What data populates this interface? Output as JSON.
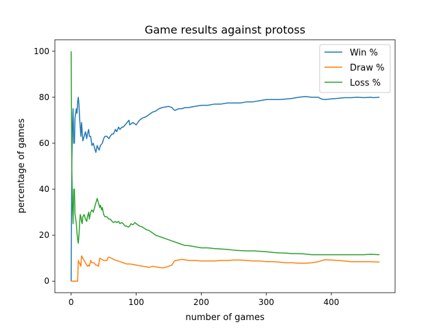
{
  "chart_data": {
    "type": "line",
    "title": "Game results against protoss",
    "xlabel": "number of games",
    "ylabel": "percentage of games",
    "xlim": [
      -25,
      498
    ],
    "ylim": [
      -5,
      105
    ],
    "xticks": [
      0,
      100,
      200,
      300,
      400
    ],
    "yticks": [
      0,
      20,
      40,
      60,
      80,
      100
    ],
    "grid": false,
    "legend_position": "top-right",
    "series": [
      {
        "name": "Win %",
        "color": "#1f77b4",
        "points": [
          [
            0,
            0
          ],
          [
            1,
            50
          ],
          [
            2,
            67
          ],
          [
            3,
            75
          ],
          [
            4,
            60
          ],
          [
            5,
            60
          ],
          [
            6,
            71
          ],
          [
            8,
            75
          ],
          [
            9,
            73
          ],
          [
            10,
            78
          ],
          [
            11,
            80
          ],
          [
            12,
            77
          ],
          [
            13,
            71
          ],
          [
            14,
            67
          ],
          [
            15,
            63
          ],
          [
            16,
            69
          ],
          [
            17,
            65
          ],
          [
            18,
            61
          ],
          [
            20,
            63
          ],
          [
            22,
            65
          ],
          [
            24,
            62
          ],
          [
            25,
            64
          ],
          [
            27,
            66
          ],
          [
            28,
            63
          ],
          [
            30,
            63
          ],
          [
            32,
            59
          ],
          [
            34,
            60
          ],
          [
            36,
            58
          ],
          [
            38,
            56
          ],
          [
            40,
            59
          ],
          [
            43,
            57
          ],
          [
            45,
            59
          ],
          [
            48,
            60
          ],
          [
            50,
            62
          ],
          [
            52,
            63
          ],
          [
            55,
            63
          ],
          [
            58,
            62
          ],
          [
            60,
            63
          ],
          [
            63,
            64
          ],
          [
            65,
            64
          ],
          [
            68,
            66
          ],
          [
            70,
            65
          ],
          [
            73,
            67
          ],
          [
            75,
            66
          ],
          [
            78,
            67
          ],
          [
            80,
            67
          ],
          [
            83,
            68
          ],
          [
            86,
            69
          ],
          [
            89,
            70
          ],
          [
            90,
            68
          ],
          [
            95,
            69
          ],
          [
            100,
            68
          ],
          [
            105,
            70
          ],
          [
            110,
            71
          ],
          [
            115,
            71.5
          ],
          [
            120,
            72.5
          ],
          [
            125,
            73.5
          ],
          [
            130,
            74
          ],
          [
            135,
            75
          ],
          [
            140,
            75.5
          ],
          [
            145,
            75.8
          ],
          [
            150,
            76
          ],
          [
            155,
            75.5
          ],
          [
            158,
            74.5
          ],
          [
            160,
            74.3
          ],
          [
            165,
            75
          ],
          [
            170,
            75
          ],
          [
            175,
            75.5
          ],
          [
            180,
            75.5
          ],
          [
            190,
            76
          ],
          [
            200,
            76.5
          ],
          [
            210,
            76.5
          ],
          [
            220,
            77
          ],
          [
            230,
            77
          ],
          [
            240,
            77.5
          ],
          [
            250,
            77.5
          ],
          [
            260,
            77.5
          ],
          [
            270,
            78
          ],
          [
            280,
            78
          ],
          [
            290,
            78.5
          ],
          [
            300,
            79
          ],
          [
            310,
            79
          ],
          [
            320,
            79
          ],
          [
            330,
            79.2
          ],
          [
            340,
            79.5
          ],
          [
            350,
            80
          ],
          [
            360,
            80.3
          ],
          [
            370,
            80
          ],
          [
            380,
            80
          ],
          [
            385,
            79.2
          ],
          [
            390,
            79
          ],
          [
            400,
            79.3
          ],
          [
            410,
            79.5
          ],
          [
            420,
            79.8
          ],
          [
            430,
            79.8
          ],
          [
            440,
            80
          ],
          [
            450,
            79.8
          ],
          [
            460,
            80
          ],
          [
            465,
            79.8
          ],
          [
            474,
            80
          ]
        ]
      },
      {
        "name": "Draw %",
        "color": "#ff7f0e",
        "points": [
          [
            0,
            0
          ],
          [
            5,
            0
          ],
          [
            6,
            0
          ],
          [
            7,
            0
          ],
          [
            8,
            0
          ],
          [
            9,
            0
          ],
          [
            10,
            0
          ],
          [
            11,
            9
          ],
          [
            12,
            8
          ],
          [
            13,
            8
          ],
          [
            14,
            7
          ],
          [
            15,
            6.5
          ],
          [
            16,
            11
          ],
          [
            18,
            10
          ],
          [
            20,
            9
          ],
          [
            22,
            8
          ],
          [
            24,
            7
          ],
          [
            25,
            6.5
          ],
          [
            27,
            7
          ],
          [
            28,
            6.5
          ],
          [
            30,
            9
          ],
          [
            32,
            8
          ],
          [
            35,
            8
          ],
          [
            38,
            7
          ],
          [
            40,
            7
          ],
          [
            42,
            6.5
          ],
          [
            44,
            10
          ],
          [
            47,
            9.5
          ],
          [
            50,
            9
          ],
          [
            55,
            9
          ],
          [
            56,
            10
          ],
          [
            58,
            10.5
          ],
          [
            62,
            10
          ],
          [
            65,
            9.5
          ],
          [
            70,
            9
          ],
          [
            75,
            8.5
          ],
          [
            80,
            8
          ],
          [
            85,
            7.5
          ],
          [
            90,
            7.5
          ],
          [
            95,
            7.3
          ],
          [
            100,
            7
          ],
          [
            110,
            6.5
          ],
          [
            120,
            6
          ],
          [
            125,
            6.5
          ],
          [
            130,
            6.2
          ],
          [
            135,
            6
          ],
          [
            140,
            5.8
          ],
          [
            145,
            6
          ],
          [
            150,
            6.5
          ],
          [
            155,
            7
          ],
          [
            158,
            8.5
          ],
          [
            160,
            9
          ],
          [
            165,
            9.2
          ],
          [
            170,
            9.5
          ],
          [
            180,
            9
          ],
          [
            190,
            9
          ],
          [
            200,
            8.8
          ],
          [
            210,
            8.8
          ],
          [
            220,
            8.8
          ],
          [
            230,
            9
          ],
          [
            240,
            9
          ],
          [
            250,
            9.2
          ],
          [
            260,
            9.2
          ],
          [
            270,
            9
          ],
          [
            280,
            8.8
          ],
          [
            290,
            8.8
          ],
          [
            300,
            8.5
          ],
          [
            310,
            8.5
          ],
          [
            320,
            8.3
          ],
          [
            330,
            8
          ],
          [
            340,
            8
          ],
          [
            350,
            7.8
          ],
          [
            360,
            7.8
          ],
          [
            370,
            8
          ],
          [
            380,
            8.5
          ],
          [
            390,
            9.3
          ],
          [
            400,
            9.2
          ],
          [
            410,
            9
          ],
          [
            420,
            8.8
          ],
          [
            430,
            8.5
          ],
          [
            440,
            8.5
          ],
          [
            450,
            8.5
          ],
          [
            460,
            8.5
          ],
          [
            474,
            8.3
          ]
        ]
      },
      {
        "name": "Loss %",
        "color": "#2ca02c",
        "points": [
          [
            0,
            100
          ],
          [
            1,
            50
          ],
          [
            2,
            33
          ],
          [
            3,
            25
          ],
          [
            4,
            40
          ],
          [
            5,
            40
          ],
          [
            6,
            29
          ],
          [
            8,
            25
          ],
          [
            9,
            21
          ],
          [
            10,
            18
          ],
          [
            11,
            16.5
          ],
          [
            12,
            20
          ],
          [
            13,
            25
          ],
          [
            14,
            29
          ],
          [
            15,
            28
          ],
          [
            16,
            26
          ],
          [
            17,
            25
          ],
          [
            18,
            28
          ],
          [
            20,
            29
          ],
          [
            22,
            27
          ],
          [
            24,
            26
          ],
          [
            25,
            28
          ],
          [
            27,
            30
          ],
          [
            28,
            27
          ],
          [
            30,
            30
          ],
          [
            32,
            31
          ],
          [
            34,
            30
          ],
          [
            36,
            32
          ],
          [
            38,
            34
          ],
          [
            40,
            36
          ],
          [
            42,
            34
          ],
          [
            44,
            32
          ],
          [
            45,
            33
          ],
          [
            47,
            31
          ],
          [
            48,
            32
          ],
          [
            50,
            29
          ],
          [
            52,
            28
          ],
          [
            55,
            28
          ],
          [
            58,
            27
          ],
          [
            60,
            27
          ],
          [
            63,
            26
          ],
          [
            65,
            25.5
          ],
          [
            68,
            26
          ],
          [
            70,
            25.5
          ],
          [
            73,
            26
          ],
          [
            75,
            25
          ],
          [
            78,
            25.5
          ],
          [
            80,
            25
          ],
          [
            83,
            24
          ],
          [
            85,
            24
          ],
          [
            88,
            23.5
          ],
          [
            90,
            24
          ],
          [
            92,
            25
          ],
          [
            95,
            24.5
          ],
          [
            98,
            25.5
          ],
          [
            100,
            25
          ],
          [
            105,
            24
          ],
          [
            110,
            23.5
          ],
          [
            115,
            22.5
          ],
          [
            120,
            22
          ],
          [
            125,
            21
          ],
          [
            130,
            20
          ],
          [
            135,
            19.5
          ],
          [
            140,
            19
          ],
          [
            145,
            18.5
          ],
          [
            150,
            18
          ],
          [
            155,
            17.5
          ],
          [
            160,
            17
          ],
          [
            165,
            16.5
          ],
          [
            170,
            16
          ],
          [
            175,
            15.5
          ],
          [
            180,
            15.5
          ],
          [
            190,
            15
          ],
          [
            200,
            14.5
          ],
          [
            210,
            14.5
          ],
          [
            220,
            14.2
          ],
          [
            230,
            14
          ],
          [
            240,
            13.8
          ],
          [
            250,
            13.5
          ],
          [
            260,
            13.3
          ],
          [
            270,
            13.2
          ],
          [
            280,
            13.2
          ],
          [
            290,
            13
          ],
          [
            300,
            12.8
          ],
          [
            310,
            12.5
          ],
          [
            320,
            12.3
          ],
          [
            330,
            12.2
          ],
          [
            340,
            12
          ],
          [
            350,
            12
          ],
          [
            360,
            11.8
          ],
          [
            370,
            11.5
          ],
          [
            380,
            11.5
          ],
          [
            390,
            11.5
          ],
          [
            400,
            11.5
          ],
          [
            410,
            11.5
          ],
          [
            420,
            11.5
          ],
          [
            430,
            11.5
          ],
          [
            440,
            11.5
          ],
          [
            450,
            11.5
          ],
          [
            460,
            11.7
          ],
          [
            474,
            11.5
          ]
        ]
      }
    ]
  }
}
